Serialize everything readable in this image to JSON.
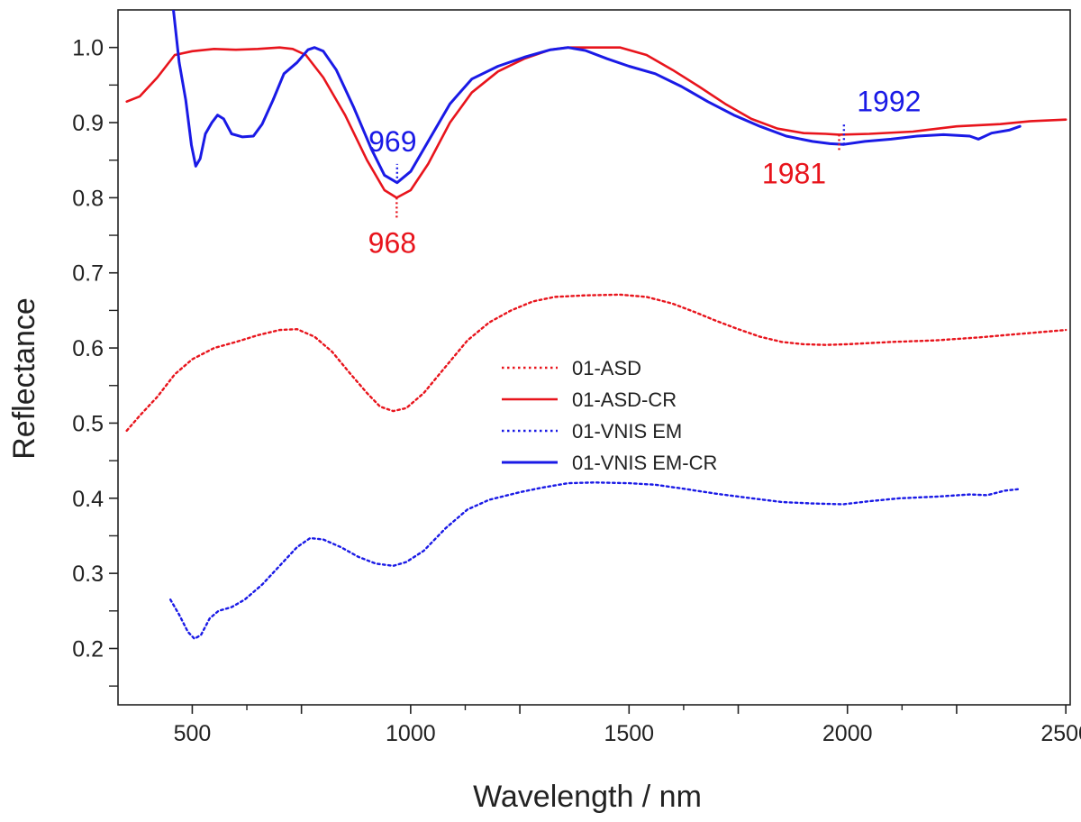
{
  "chart_data": {
    "type": "line",
    "title": "",
    "xlabel": "Wavelength / nm",
    "ylabel": "Reflectance",
    "xlim": [
      330,
      2510
    ],
    "ylim": [
      0.125,
      1.05
    ],
    "x_ticks": [
      500,
      1000,
      1500,
      2000,
      2500
    ],
    "x_tick_labels": [
      "500",
      "1000",
      "1500",
      "2000",
      "2500"
    ],
    "y_ticks": [
      0.2,
      0.3,
      0.4,
      0.5,
      0.6,
      0.7,
      0.8,
      0.9,
      1.0
    ],
    "y_tick_labels": [
      "0.2",
      "0.3",
      "0.4",
      "0.5",
      "0.6",
      "0.7",
      "0.8",
      "0.9",
      "1.0"
    ],
    "legend_position": "center",
    "series": [
      {
        "name": "01-ASD",
        "color": "#e8141c",
        "style": "dotted",
        "points": [
          [
            350,
            0.49
          ],
          [
            380,
            0.51
          ],
          [
            420,
            0.535
          ],
          [
            460,
            0.565
          ],
          [
            500,
            0.585
          ],
          [
            550,
            0.6
          ],
          [
            600,
            0.608
          ],
          [
            650,
            0.617
          ],
          [
            700,
            0.624
          ],
          [
            740,
            0.625
          ],
          [
            780,
            0.615
          ],
          [
            820,
            0.595
          ],
          [
            860,
            0.567
          ],
          [
            900,
            0.54
          ],
          [
            930,
            0.522
          ],
          [
            960,
            0.516
          ],
          [
            990,
            0.52
          ],
          [
            1030,
            0.54
          ],
          [
            1080,
            0.575
          ],
          [
            1130,
            0.61
          ],
          [
            1180,
            0.634
          ],
          [
            1230,
            0.65
          ],
          [
            1280,
            0.662
          ],
          [
            1330,
            0.668
          ],
          [
            1400,
            0.67
          ],
          [
            1480,
            0.671
          ],
          [
            1540,
            0.668
          ],
          [
            1600,
            0.659
          ],
          [
            1650,
            0.648
          ],
          [
            1700,
            0.636
          ],
          [
            1750,
            0.625
          ],
          [
            1800,
            0.615
          ],
          [
            1850,
            0.608
          ],
          [
            1900,
            0.605
          ],
          [
            1950,
            0.604
          ],
          [
            2000,
            0.605
          ],
          [
            2100,
            0.608
          ],
          [
            2200,
            0.61
          ],
          [
            2300,
            0.614
          ],
          [
            2400,
            0.619
          ],
          [
            2500,
            0.624
          ]
        ]
      },
      {
        "name": "01-ASD-CR",
        "color": "#e8141c",
        "style": "solid",
        "points": [
          [
            350,
            0.928
          ],
          [
            380,
            0.935
          ],
          [
            420,
            0.96
          ],
          [
            460,
            0.99
          ],
          [
            500,
            0.995
          ],
          [
            550,
            0.998
          ],
          [
            600,
            0.997
          ],
          [
            650,
            0.998
          ],
          [
            700,
            1.0
          ],
          [
            730,
            0.998
          ],
          [
            760,
            0.99
          ],
          [
            800,
            0.96
          ],
          [
            850,
            0.91
          ],
          [
            900,
            0.85
          ],
          [
            940,
            0.81
          ],
          [
            968,
            0.8
          ],
          [
            1000,
            0.81
          ],
          [
            1040,
            0.845
          ],
          [
            1090,
            0.9
          ],
          [
            1140,
            0.94
          ],
          [
            1200,
            0.968
          ],
          [
            1260,
            0.985
          ],
          [
            1320,
            0.997
          ],
          [
            1360,
            1.0
          ],
          [
            1400,
            1.0
          ],
          [
            1480,
            1.0
          ],
          [
            1540,
            0.99
          ],
          [
            1600,
            0.97
          ],
          [
            1660,
            0.948
          ],
          [
            1720,
            0.925
          ],
          [
            1780,
            0.905
          ],
          [
            1840,
            0.892
          ],
          [
            1900,
            0.886
          ],
          [
            1950,
            0.885
          ],
          [
            1981,
            0.884
          ],
          [
            2050,
            0.885
          ],
          [
            2150,
            0.888
          ],
          [
            2250,
            0.895
          ],
          [
            2350,
            0.898
          ],
          [
            2420,
            0.902
          ],
          [
            2500,
            0.904
          ]
        ]
      },
      {
        "name": "01-VNIS EM",
        "color": "#1a1ae6",
        "style": "dotted",
        "points": [
          [
            450,
            0.265
          ],
          [
            470,
            0.245
          ],
          [
            490,
            0.222
          ],
          [
            505,
            0.213
          ],
          [
            520,
            0.218
          ],
          [
            540,
            0.24
          ],
          [
            560,
            0.25
          ],
          [
            590,
            0.255
          ],
          [
            620,
            0.265
          ],
          [
            660,
            0.285
          ],
          [
            700,
            0.31
          ],
          [
            740,
            0.335
          ],
          [
            770,
            0.347
          ],
          [
            800,
            0.345
          ],
          [
            840,
            0.335
          ],
          [
            880,
            0.322
          ],
          [
            920,
            0.313
          ],
          [
            960,
            0.31
          ],
          [
            990,
            0.315
          ],
          [
            1030,
            0.33
          ],
          [
            1080,
            0.36
          ],
          [
            1130,
            0.385
          ],
          [
            1180,
            0.398
          ],
          [
            1250,
            0.408
          ],
          [
            1300,
            0.414
          ],
          [
            1360,
            0.42
          ],
          [
            1420,
            0.421
          ],
          [
            1500,
            0.42
          ],
          [
            1560,
            0.418
          ],
          [
            1620,
            0.413
          ],
          [
            1700,
            0.406
          ],
          [
            1780,
            0.4
          ],
          [
            1850,
            0.395
          ],
          [
            1920,
            0.393
          ],
          [
            1990,
            0.392
          ],
          [
            2050,
            0.396
          ],
          [
            2120,
            0.4
          ],
          [
            2200,
            0.402
          ],
          [
            2280,
            0.405
          ],
          [
            2320,
            0.404
          ],
          [
            2360,
            0.41
          ],
          [
            2390,
            0.412
          ]
        ]
      },
      {
        "name": "01-VNIS EM-CR",
        "color": "#1a1ae6",
        "style": "solid",
        "points": [
          [
            455,
            1.06
          ],
          [
            470,
            0.98
          ],
          [
            485,
            0.93
          ],
          [
            498,
            0.87
          ],
          [
            508,
            0.842
          ],
          [
            518,
            0.852
          ],
          [
            530,
            0.885
          ],
          [
            545,
            0.9
          ],
          [
            558,
            0.91
          ],
          [
            572,
            0.905
          ],
          [
            590,
            0.885
          ],
          [
            615,
            0.881
          ],
          [
            640,
            0.882
          ],
          [
            660,
            0.898
          ],
          [
            685,
            0.93
          ],
          [
            710,
            0.965
          ],
          [
            740,
            0.98
          ],
          [
            765,
            0.997
          ],
          [
            780,
            1.0
          ],
          [
            800,
            0.995
          ],
          [
            830,
            0.97
          ],
          [
            870,
            0.92
          ],
          [
            910,
            0.865
          ],
          [
            940,
            0.83
          ],
          [
            969,
            0.82
          ],
          [
            1000,
            0.835
          ],
          [
            1040,
            0.875
          ],
          [
            1090,
            0.925
          ],
          [
            1140,
            0.958
          ],
          [
            1200,
            0.975
          ],
          [
            1260,
            0.987
          ],
          [
            1320,
            0.997
          ],
          [
            1360,
            1.0
          ],
          [
            1400,
            0.996
          ],
          [
            1450,
            0.985
          ],
          [
            1500,
            0.975
          ],
          [
            1560,
            0.965
          ],
          [
            1620,
            0.948
          ],
          [
            1680,
            0.928
          ],
          [
            1740,
            0.91
          ],
          [
            1800,
            0.895
          ],
          [
            1860,
            0.882
          ],
          [
            1920,
            0.875
          ],
          [
            1960,
            0.872
          ],
          [
            1992,
            0.871
          ],
          [
            2040,
            0.875
          ],
          [
            2100,
            0.878
          ],
          [
            2160,
            0.882
          ],
          [
            2220,
            0.884
          ],
          [
            2280,
            0.882
          ],
          [
            2300,
            0.878
          ],
          [
            2330,
            0.886
          ],
          [
            2370,
            0.89
          ],
          [
            2395,
            0.895
          ]
        ]
      }
    ],
    "annotations": [
      {
        "text": "969",
        "x": 969,
        "y": 0.82,
        "color": "#1a1ae6",
        "marker_to": 0.845,
        "label_side": "above"
      },
      {
        "text": "968",
        "x": 968,
        "y": 0.8,
        "color": "#e8141c",
        "marker_to": 0.77,
        "label_side": "below"
      },
      {
        "text": "1992",
        "x": 1992,
        "y": 0.871,
        "color": "#1a1ae6",
        "marker_to": 0.898,
        "label_side": "above"
      },
      {
        "text": "1981",
        "x": 1981,
        "y": 0.884,
        "color": "#e8141c",
        "marker_to": 0.862,
        "label_side": "below"
      }
    ]
  }
}
